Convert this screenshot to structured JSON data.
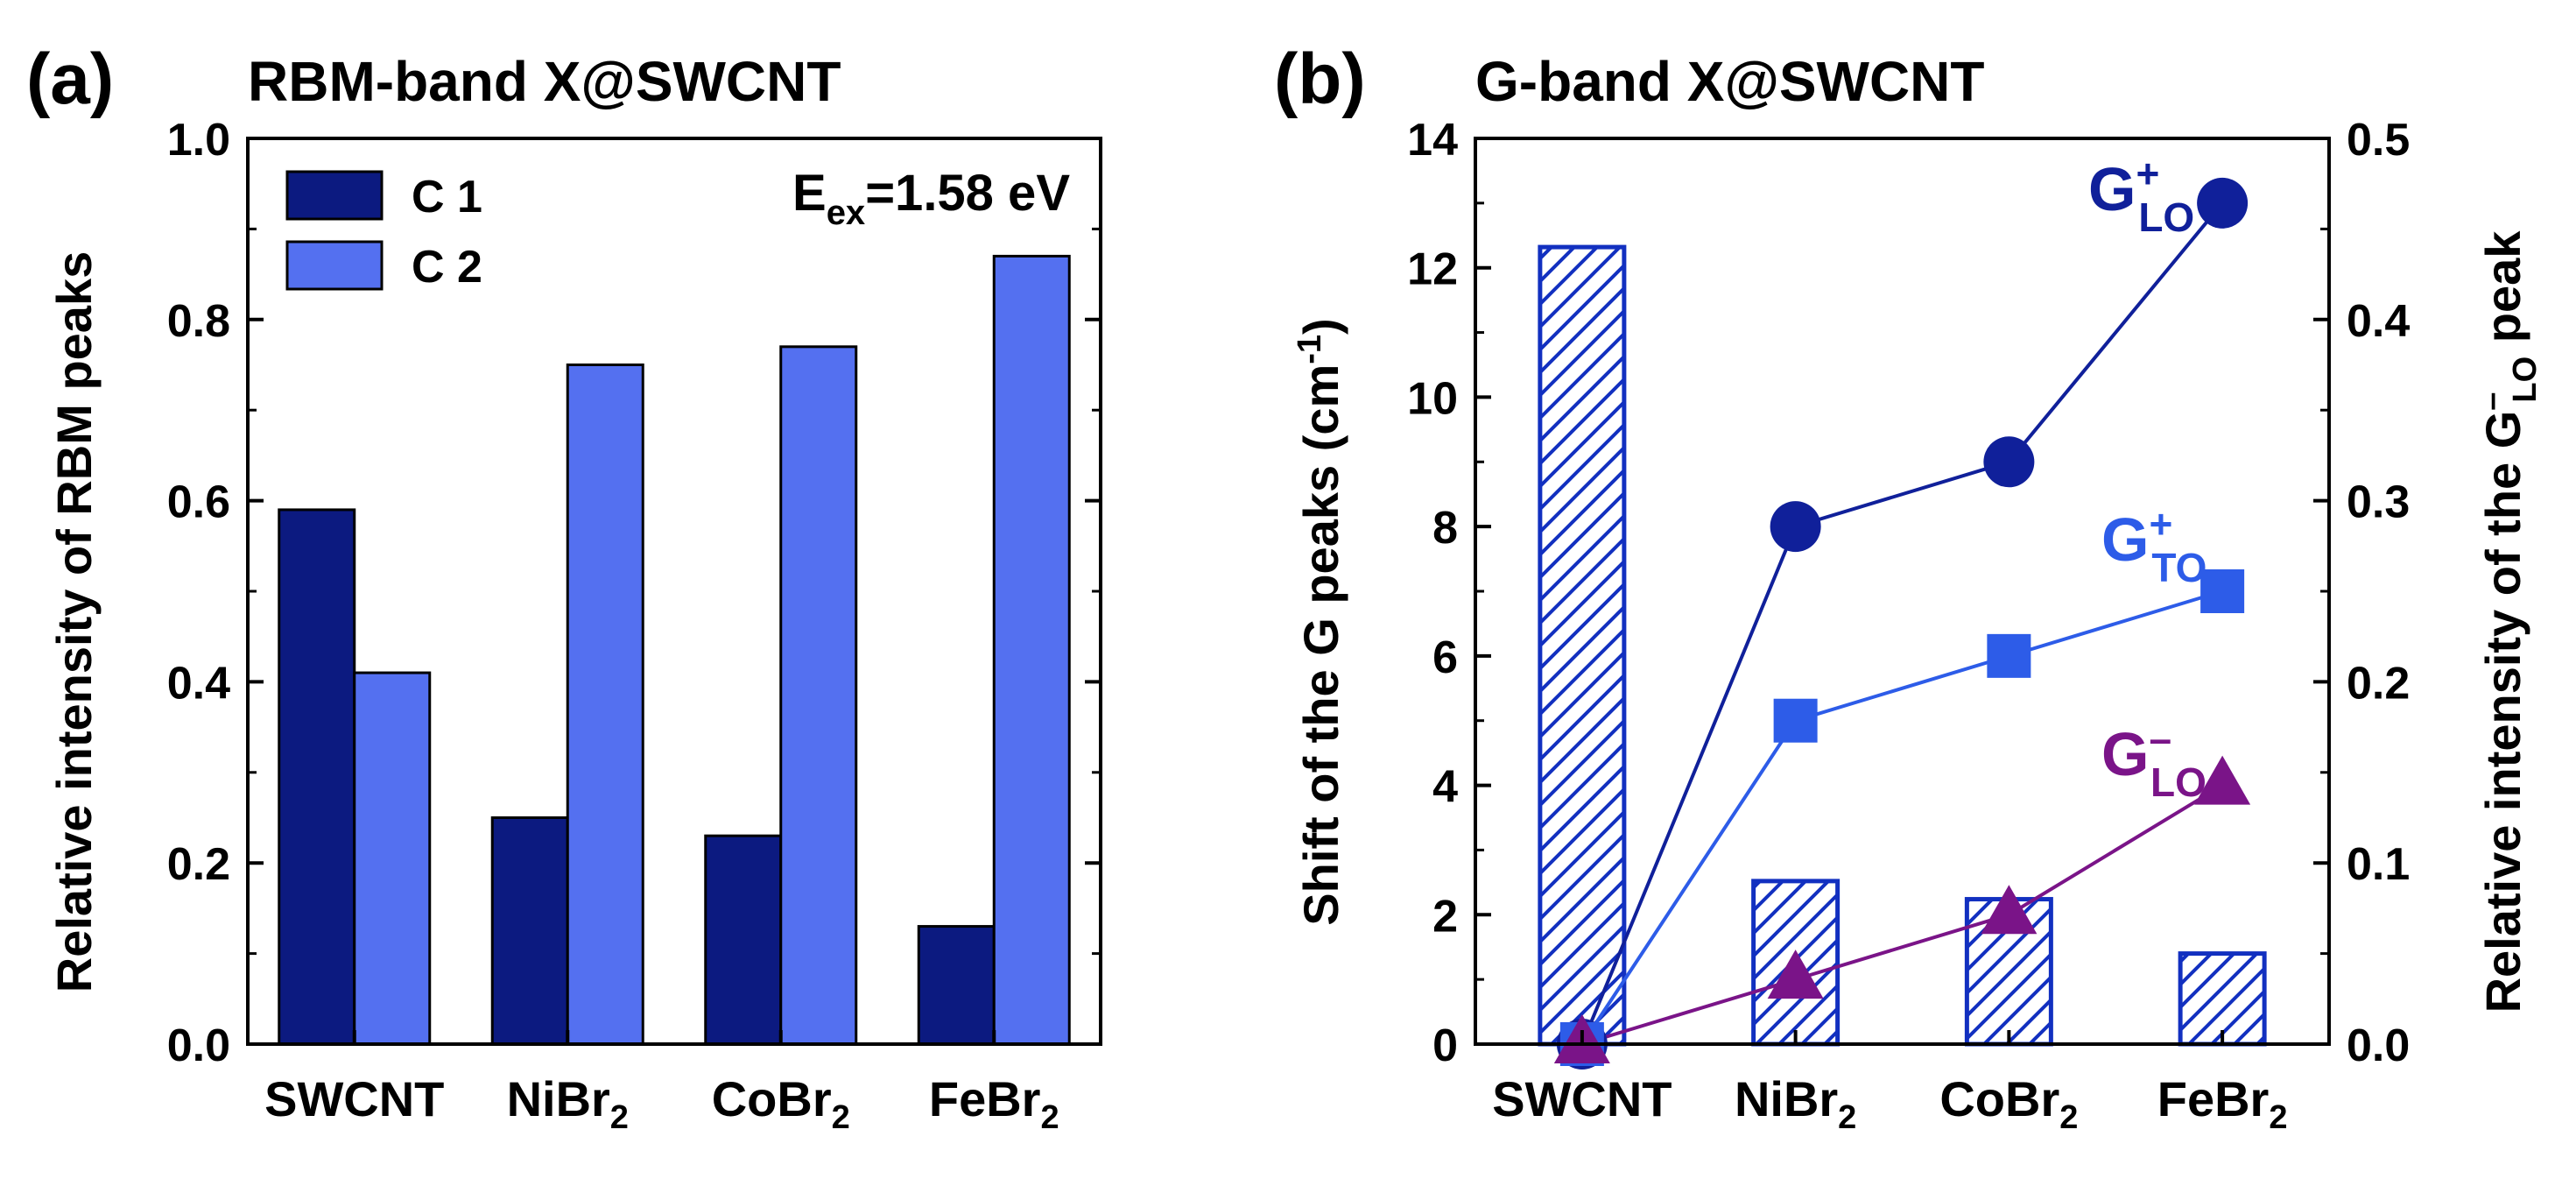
{
  "chart_data": [
    {
      "panel_label": "(a)",
      "type": "bar",
      "title": "RBM-band X@SWCNT",
      "categories": [
        "SWCNT",
        "NiBr",
        "CoBr",
        "FeBr"
      ],
      "category_subscripts": [
        "",
        "2",
        "2",
        "2"
      ],
      "series": [
        {
          "name": "C 1",
          "values": [
            0.59,
            0.25,
            0.23,
            0.13
          ],
          "color": "#0c1a80"
        },
        {
          "name": "C 2",
          "values": [
            0.41,
            0.75,
            0.77,
            0.87
          ],
          "color": "#5470f0"
        }
      ],
      "ylabel": "Relative intensity of RBM peaks",
      "ylim": [
        0,
        1.0
      ],
      "yticks": [
        "0.0",
        "0.2",
        "0.4",
        "0.6",
        "0.8",
        "1.0"
      ],
      "legend": "top-left",
      "annotation": {
        "main": "E",
        "sub": "ex",
        "rest": "=1.58 eV"
      }
    },
    {
      "panel_label": "(b)",
      "type": "bar+line",
      "title": "G-band X@SWCNT",
      "categories": [
        "SWCNT",
        "NiBr",
        "CoBr",
        "FeBr"
      ],
      "category_subscripts": [
        "",
        "2",
        "2",
        "2"
      ],
      "bars": {
        "axis": "right",
        "name": "Relative intensity of the G LO peak",
        "values": [
          0.44,
          0.09,
          0.08,
          0.05
        ],
        "color": "#1230c0",
        "pattern": "hatched"
      },
      "series": [
        {
          "name": "G+LO",
          "label": "G",
          "sup": "+",
          "sub": "LO",
          "marker": "circle",
          "values": [
            0,
            8,
            9,
            13
          ],
          "color": "#10209a"
        },
        {
          "name": "G+TO",
          "label": "G",
          "sup": "+",
          "sub": "TO",
          "marker": "square",
          "values": [
            0,
            5,
            6,
            7
          ],
          "color": "#2d5ce8"
        },
        {
          "name": "G-LO",
          "label": "G",
          "sup": "–",
          "sub": "LO",
          "marker": "triangle",
          "values": [
            0,
            1,
            2,
            4
          ],
          "color": "#7a1488"
        }
      ],
      "ylabel_left": {
        "main": "Shift of the G peaks (cm",
        "sup": "-1",
        "rest": ")"
      },
      "ylabel_right": {
        "main": "Relative intensity of the G",
        "sup": "–",
        "sub": "LO",
        "rest": " peak"
      },
      "ylim_left": [
        0,
        14
      ],
      "yticks_left": [
        "0",
        "2",
        "4",
        "6",
        "8",
        "10",
        "12",
        "14"
      ],
      "ylim_right": [
        0,
        0.5
      ],
      "yticks_right": [
        "0.0",
        "0.1",
        "0.2",
        "0.3",
        "0.4",
        "0.5"
      ]
    }
  ]
}
